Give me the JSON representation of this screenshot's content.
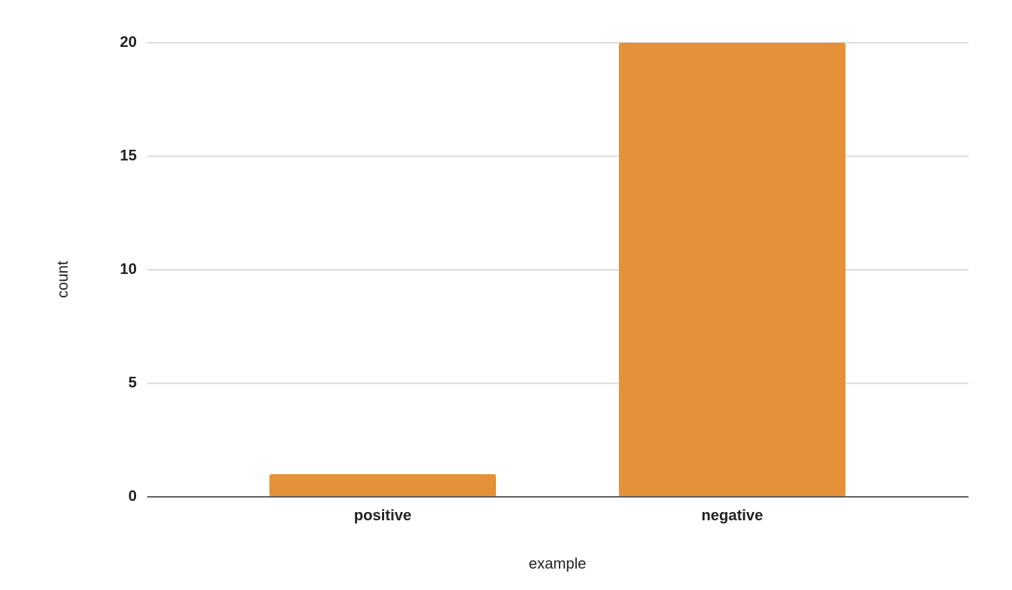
{
  "chart_data": {
    "type": "bar",
    "x_label": "example",
    "y_label": "count",
    "categories": [
      "positive",
      "negative"
    ],
    "values": [
      1,
      20
    ],
    "color": "#e59139",
    "ylim": [
      0,
      20
    ],
    "yticks": [
      0,
      5,
      10,
      15,
      20
    ],
    "grid": true
  }
}
